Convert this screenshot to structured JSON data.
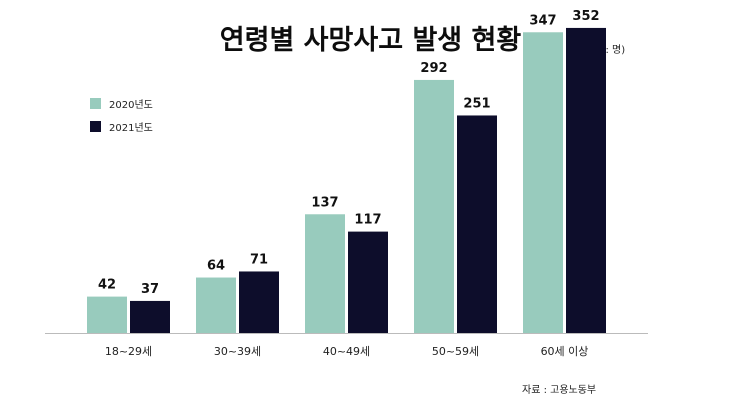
{
  "title": "연령별 사망사고 발생 현황",
  "unit_note": "(단위 : 명)",
  "source_note": "자료 : 고용노동부",
  "colors": {
    "series_2020": "#98cbbd",
    "series_2021": "#0d0d2b",
    "axis": "#bbbbbb"
  },
  "chart_data": {
    "type": "bar",
    "categories": [
      "18~29세",
      "30~39세",
      "40~49세",
      "50~59세",
      "60세 이상"
    ],
    "series": [
      {
        "name": "2020년도",
        "values": [
          42,
          64,
          137,
          292,
          347
        ]
      },
      {
        "name": "2021년도",
        "values": [
          37,
          71,
          117,
          251,
          352
        ]
      }
    ],
    "ylim": [
      0,
      360
    ],
    "grid": false,
    "legend_position": "top-left",
    "show_data_labels": true
  }
}
